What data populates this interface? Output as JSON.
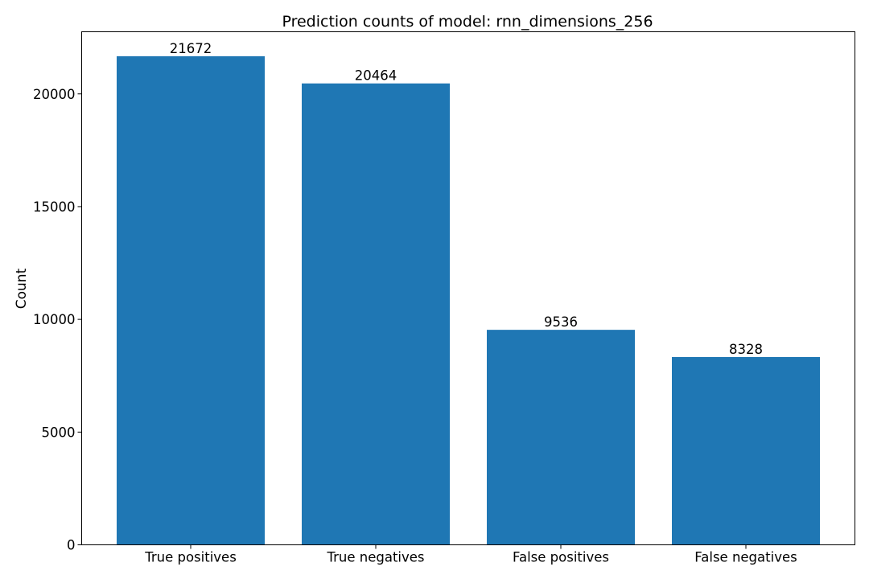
{
  "chart_data": {
    "type": "bar",
    "title": "Prediction counts of model: rnn_dimensions_256",
    "xlabel": "",
    "ylabel": "Count",
    "categories": [
      "True positives",
      "True negatives",
      "False positives",
      "False negatives"
    ],
    "values": [
      21672,
      20464,
      9536,
      8328
    ],
    "data_labels": [
      "21672",
      "20464",
      "9536",
      "8328"
    ],
    "ylim": [
      0,
      22755.6
    ],
    "yticks": [
      0,
      5000,
      10000,
      15000,
      20000
    ],
    "ytick_labels": [
      "0",
      "5000",
      "10000",
      "15000",
      "20000"
    ],
    "grid": false,
    "legend": "none",
    "bar_color": "#1f77b4"
  }
}
